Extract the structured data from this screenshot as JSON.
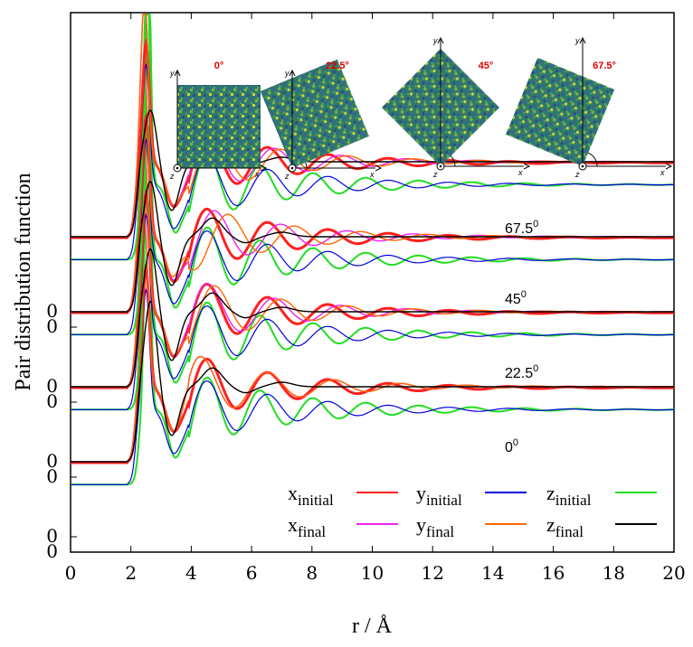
{
  "chart_data": {
    "type": "line",
    "xlabel": "r / Å",
    "ylabel": "Pair distribution function",
    "xlim": [
      0,
      20
    ],
    "x_ticks": [
      "0",
      "2",
      "4",
      "6",
      "8",
      "10",
      "12",
      "14",
      "16",
      "18",
      "20"
    ],
    "y_tick_labels": [
      "0",
      "0",
      "0",
      "0",
      "0",
      "0",
      "0",
      "0"
    ],
    "grid": false,
    "legend_position": "lower-right",
    "legend": [
      {
        "base": "x",
        "sub": "initial",
        "color": "#ff2020"
      },
      {
        "base": "y",
        "sub": "initial",
        "color": "#0000dd"
      },
      {
        "base": "z",
        "sub": "initial",
        "color": "#22dd22"
      },
      {
        "base": "x",
        "sub": "final",
        "color": "#ee22ee"
      },
      {
        "base": "y",
        "sub": "final",
        "color": "#ff6600"
      },
      {
        "base": "z",
        "sub": "final",
        "color": "#000000"
      }
    ],
    "groups": [
      {
        "angle": "0",
        "ring_phase": 0.0,
        "z_final_peak": 1.15
      },
      {
        "angle": "22.5",
        "ring_phase": 0.45,
        "z_final_peak": 0.85
      },
      {
        "angle": "45",
        "ring_phase": 0.9,
        "z_final_peak": 0.75
      },
      {
        "angle": "67.5",
        "ring_phase": 0.45,
        "z_final_peak": 0.7
      }
    ],
    "insets": [
      {
        "angle": "0°",
        "rotation_deg": 0
      },
      {
        "angle": "22.5°",
        "rotation_deg": -22.5
      },
      {
        "angle": "45°",
        "rotation_deg": -45
      },
      {
        "angle": "67.5°",
        "rotation_deg": -67.5
      }
    ],
    "axis_letters": {
      "x": "x",
      "y": "y",
      "z": "z"
    }
  }
}
